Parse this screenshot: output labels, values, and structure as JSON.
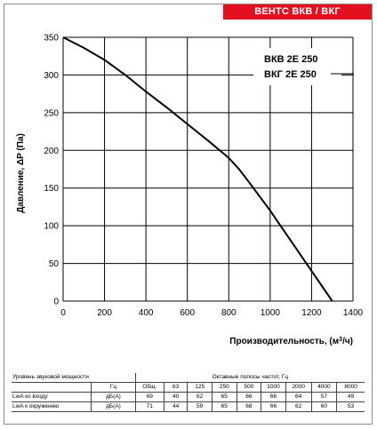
{
  "brand": "ВЕНТС ВКВ / ВКГ",
  "chart_data": {
    "type": "line",
    "xlabel_main": "Производительность, (м",
    "xlabel_sup": "3",
    "xlabel_end": "/ч)",
    "ylabel": "Давление, ΔP (Па)",
    "xlim": [
      0,
      1400
    ],
    "ylim": [
      0,
      350
    ],
    "grid": true,
    "x_ticks": [
      "0",
      "200",
      "400",
      "600",
      "800",
      "1000",
      "1200",
      "1400"
    ],
    "y_ticks": [
      "0",
      "50",
      "100",
      "150",
      "200",
      "250",
      "300",
      "350"
    ],
    "legend": [
      "ВКВ 2Е 250",
      "ВКГ 2Е 250"
    ],
    "series": [
      {
        "x": [
          0,
          100,
          200,
          300,
          400,
          500,
          600,
          700,
          800,
          850,
          900,
          1000,
          1100,
          1200,
          1300
        ],
        "y": [
          350,
          336,
          320,
          300,
          278,
          257,
          235,
          213,
          190,
          175,
          157,
          120,
          80,
          40,
          0
        ]
      }
    ]
  },
  "sound_table": {
    "title": "Уровень звуковой мощности",
    "octave_title": "Октавные полосы частот, Гц",
    "hz_label": "Гц",
    "columns": [
      "Общ.",
      "63",
      "125",
      "250",
      "500",
      "1000",
      "2000",
      "4000",
      "8000"
    ],
    "rows": [
      {
        "label": "LwA ко входу",
        "unit": "дБ(А)",
        "values": [
          "69",
          "40",
          "62",
          "65",
          "66",
          "66",
          "64",
          "57",
          "49"
        ]
      },
      {
        "label": "LwA к окружению",
        "unit": "дБ(А)",
        "values": [
          "71",
          "44",
          "59",
          "65",
          "68",
          "66",
          "62",
          "60",
          "53"
        ]
      }
    ]
  }
}
